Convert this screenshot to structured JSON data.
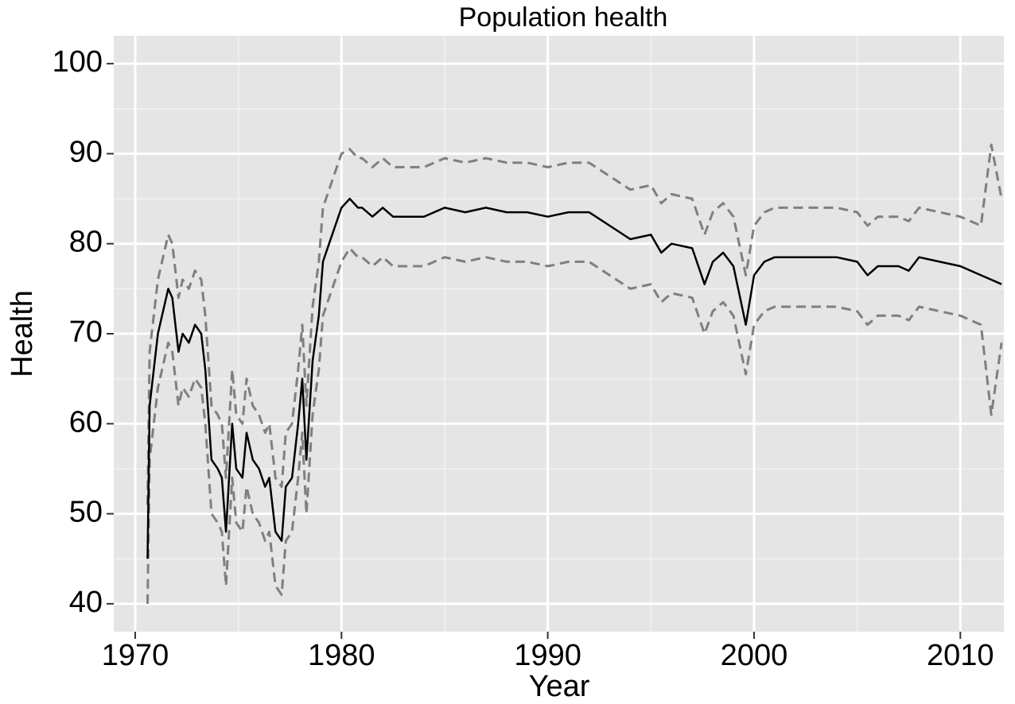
{
  "chart_data": {
    "type": "line",
    "title": "Population health",
    "xlabel": "Year",
    "ylabel": "Health",
    "x": [
      1970.6,
      1970.7,
      1970.9,
      1971.1,
      1971.3,
      1971.6,
      1971.8,
      1972.1,
      1972.3,
      1972.6,
      1972.9,
      1973.2,
      1973.4,
      1973.7,
      1974.0,
      1974.2,
      1974.4,
      1974.7,
      1974.9,
      1975.2,
      1975.4,
      1975.7,
      1976.0,
      1976.3,
      1976.5,
      1976.8,
      1977.1,
      1977.3,
      1977.6,
      1977.9,
      1978.1,
      1978.3,
      1978.6,
      1978.9,
      1979.1,
      1979.4,
      1979.7,
      1980.0,
      1980.4,
      1980.8,
      1981,
      1981.5,
      1982,
      1982.5,
      1983,
      1984,
      1985,
      1986,
      1987,
      1988,
      1989,
      1990,
      1991,
      1992,
      1993,
      1994,
      1995,
      1995.5,
      1996,
      1997,
      1997.6,
      1998,
      1998.5,
      1999,
      1999.6,
      2000,
      2000.5,
      2001,
      2002,
      2003,
      2004,
      2005,
      2005.5,
      2006,
      2007,
      2007.5,
      2008,
      2009,
      2010,
      2011,
      2011.5,
      2012
    ],
    "series": [
      {
        "color": "#7f7f7f",
        "dashed": true,
        "values": [
          51,
          68,
          72,
          76,
          78,
          81,
          80,
          74,
          76,
          75,
          77,
          76,
          72,
          62,
          61,
          60,
          54,
          66,
          61,
          60,
          65,
          62,
          61,
          59,
          60,
          54,
          53,
          59,
          60,
          66,
          71,
          62,
          73,
          78,
          84,
          86,
          88,
          90,
          90.5,
          89.5,
          89.5,
          88.5,
          89.5,
          88.5,
          88.5,
          88.5,
          89.5,
          89,
          89.5,
          89,
          89,
          88.5,
          89,
          89,
          87.5,
          86,
          86.5,
          84.5,
          85.5,
          85,
          81,
          83.5,
          84.5,
          83,
          76.5,
          82,
          83.5,
          84,
          84,
          84,
          84,
          83.5,
          82,
          83,
          83,
          82.5,
          84,
          83.5,
          83,
          82,
          91,
          85
        ]
      },
      {
        "color": "#7f7f7f",
        "dashed": true,
        "values": [
          40,
          56,
          60,
          64,
          66,
          69,
          68,
          62,
          64,
          63,
          65,
          64,
          60,
          50,
          49,
          48,
          42,
          54,
          49,
          48,
          53,
          50,
          49,
          47,
          48,
          42,
          41,
          47,
          48,
          54,
          59,
          50,
          61,
          66,
          72,
          74,
          76,
          78,
          79.5,
          78.5,
          78.5,
          77.5,
          78.5,
          77.5,
          77.5,
          77.5,
          78.5,
          78,
          78.5,
          78,
          78,
          77.5,
          78,
          78,
          76.5,
          75,
          75.5,
          73.5,
          74.5,
          74,
          70,
          72.5,
          73.5,
          72,
          65.5,
          71,
          72.5,
          73,
          73,
          73,
          73,
          72.5,
          71,
          72,
          72,
          71.5,
          73,
          72.5,
          72,
          71,
          61,
          69
        ]
      },
      {
        "color": "#000000",
        "dashed": false,
        "values": [
          45,
          62,
          66,
          70,
          72,
          75,
          74,
          68,
          70,
          69,
          71,
          70,
          66,
          56,
          55,
          54,
          48,
          60,
          55,
          54,
          59,
          56,
          55,
          53,
          54,
          48,
          47,
          53,
          54,
          60,
          65,
          56,
          67,
          72,
          78,
          80,
          82,
          84,
          85,
          84,
          84,
          83,
          84,
          83,
          83,
          83,
          84,
          83.5,
          84,
          83.5,
          83.5,
          83,
          83.5,
          83.5,
          82,
          80.5,
          81,
          79,
          80,
          79.5,
          75.5,
          78,
          79,
          77.5,
          71,
          76.5,
          78,
          78.5,
          78.5,
          78.5,
          78.5,
          78,
          76.5,
          77.5,
          77.5,
          77,
          78.5,
          78,
          77.5,
          76.5,
          76,
          75.5
        ]
      }
    ],
    "xlim": [
      1968.96,
      2012.11
    ],
    "xticks": [
      1970,
      1980,
      1990,
      2000,
      2010
    ],
    "ylim": [
      36.9,
      103.1
    ],
    "yticks": [
      40,
      50,
      60,
      70,
      80,
      90,
      100
    ],
    "grid": true
  }
}
